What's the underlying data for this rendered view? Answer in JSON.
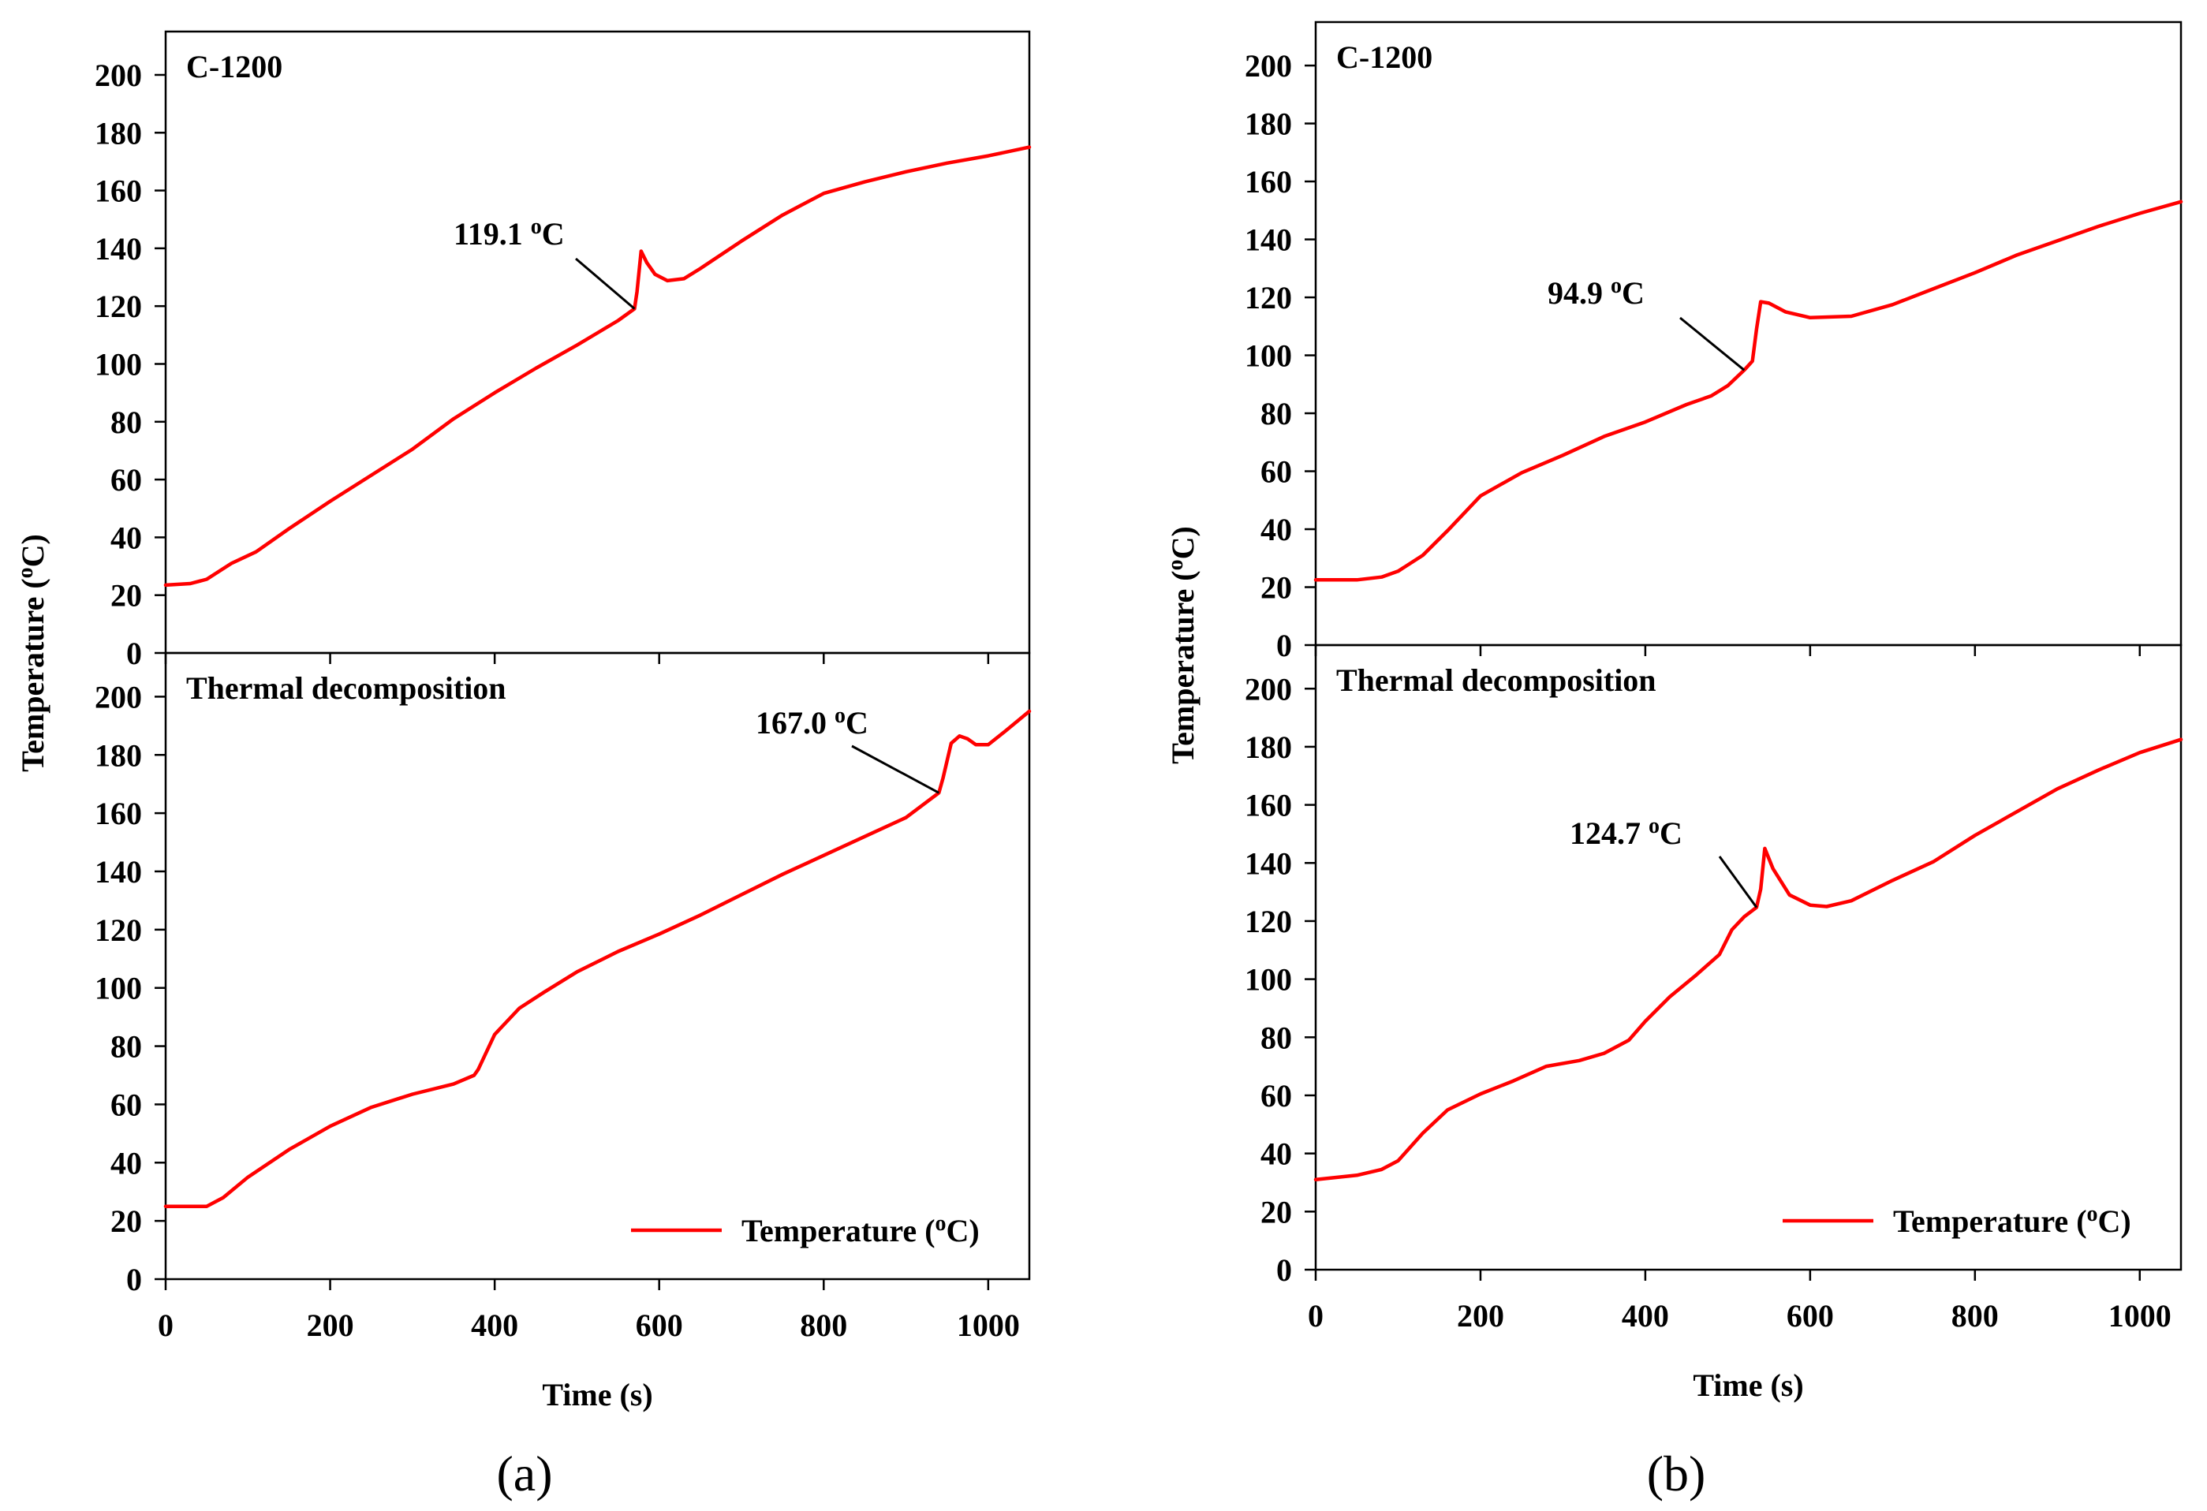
{
  "chart_data": [
    {
      "type": "line",
      "figure": "a",
      "subplot": "top",
      "title": "C-1200",
      "xlabel": "",
      "ylabel": "Temperature (oC)",
      "xlim": [
        0,
        1050
      ],
      "ylim": [
        0,
        215
      ],
      "xticks": [
        "0",
        "200",
        "400",
        "600",
        "800",
        "1000"
      ],
      "yticks": [
        "0",
        "20",
        "40",
        "60",
        "80",
        "100",
        "120",
        "140",
        "160",
        "180",
        "200"
      ],
      "series": [
        {
          "name": "Temperature (oC)",
          "color": "#ff0000",
          "x": [
            0,
            30,
            50,
            80,
            110,
            150,
            200,
            250,
            300,
            350,
            400,
            450,
            500,
            550,
            570,
            573,
            578,
            585,
            595,
            610,
            630,
            650,
            700,
            750,
            800,
            850,
            900,
            950,
            1000,
            1050
          ],
          "y": [
            23.5,
            24,
            25.5,
            31,
            35,
            43,
            52.5,
            61.5,
            70.5,
            81,
            90,
            98.5,
            106.5,
            115,
            119.1,
            125,
            139,
            135,
            131,
            128.8,
            129.5,
            133,
            142.5,
            151.5,
            159,
            163,
            166.5,
            169.5,
            172,
            175
          ]
        }
      ],
      "annotations": [
        {
          "text": "119.1 oC",
          "x": 570,
          "y": 119.1
        }
      ]
    },
    {
      "type": "line",
      "figure": "a",
      "subplot": "bottom",
      "title": "Thermal decomposition",
      "xlabel": "Time (s)",
      "ylabel": "",
      "xlim": [
        0,
        1050
      ],
      "ylim": [
        0,
        215
      ],
      "xticks": [
        "0",
        "200",
        "400",
        "600",
        "800",
        "1000"
      ],
      "yticks": [
        "0",
        "20",
        "40",
        "60",
        "80",
        "100",
        "120",
        "140",
        "160",
        "180",
        "200"
      ],
      "legend": "bottom-right",
      "series": [
        {
          "name": "Temperature (oC)",
          "color": "#ff0000",
          "x": [
            0,
            50,
            70,
            100,
            150,
            200,
            250,
            300,
            350,
            375,
            380,
            400,
            430,
            460,
            500,
            550,
            600,
            650,
            700,
            750,
            800,
            850,
            900,
            940,
            945,
            955,
            965,
            975,
            985,
            1000,
            1020,
            1050
          ],
          "y": [
            25,
            25,
            28,
            35,
            44.5,
            52.5,
            59,
            63.5,
            67,
            70,
            72,
            84,
            93,
            98.5,
            105.5,
            112.5,
            118.5,
            125,
            132,
            139,
            145.5,
            152,
            158.5,
            167,
            172,
            184,
            186.5,
            185.5,
            183.5,
            183.5,
            188,
            195
          ]
        }
      ],
      "annotations": [
        {
          "text": "167.0 oC",
          "x": 940,
          "y": 167.0
        }
      ]
    },
    {
      "type": "line",
      "figure": "b",
      "subplot": "top",
      "title": "C-1200",
      "xlabel": "",
      "ylabel": "Temperature (oC)",
      "xlim": [
        0,
        1050
      ],
      "ylim": [
        0,
        215
      ],
      "xticks": [
        "0",
        "200",
        "400",
        "600",
        "800",
        "1000"
      ],
      "yticks": [
        "0",
        "20",
        "40",
        "60",
        "80",
        "100",
        "120",
        "140",
        "160",
        "180",
        "200"
      ],
      "series": [
        {
          "name": "Temperature (oC)",
          "color": "#ff0000",
          "x": [
            0,
            50,
            80,
            100,
            130,
            160,
            200,
            250,
            300,
            350,
            400,
            450,
            480,
            500,
            520,
            530,
            535,
            540,
            550,
            570,
            600,
            650,
            700,
            750,
            800,
            850,
            900,
            950,
            1000,
            1050
          ],
          "y": [
            22.5,
            22.5,
            23.5,
            25.5,
            31,
            39.5,
            51.5,
            59.5,
            65.5,
            72,
            77,
            83,
            86,
            89.5,
            94.9,
            98,
            109,
            118.5,
            118,
            115,
            113,
            113.5,
            117.5,
            123,
            128.5,
            134.5,
            139.5,
            144.5,
            149,
            153
          ]
        }
      ],
      "annotations": [
        {
          "text": "94.9 oC",
          "x": 520,
          "y": 94.9
        }
      ]
    },
    {
      "type": "line",
      "figure": "b",
      "subplot": "bottom",
      "title": "Thermal decomposition",
      "xlabel": "Time (s)",
      "ylabel": "",
      "xlim": [
        0,
        1050
      ],
      "ylim": [
        0,
        215
      ],
      "xticks": [
        "0",
        "200",
        "400",
        "600",
        "800",
        "1000"
      ],
      "yticks": [
        "0",
        "20",
        "40",
        "60",
        "80",
        "100",
        "120",
        "140",
        "160",
        "180",
        "200"
      ],
      "legend": "bottom-right",
      "series": [
        {
          "name": "Temperature (oC)",
          "color": "#ff0000",
          "x": [
            0,
            50,
            80,
            100,
            130,
            160,
            200,
            240,
            280,
            320,
            350,
            380,
            400,
            430,
            460,
            490,
            505,
            520,
            535,
            540,
            545,
            555,
            575,
            600,
            620,
            650,
            700,
            750,
            800,
            850,
            900,
            950,
            1000,
            1050
          ],
          "y": [
            31,
            32.5,
            34.5,
            37.5,
            47,
            55,
            60.5,
            65,
            70,
            72,
            74.5,
            79,
            85.5,
            94,
            101,
            108.5,
            117,
            121.5,
            124.7,
            131,
            145,
            138,
            129,
            125.5,
            125,
            127,
            134,
            140.5,
            149.5,
            157.5,
            165.5,
            172,
            178,
            182.5
          ]
        }
      ],
      "annotations": [
        {
          "text": "124.7 oC",
          "x": 535,
          "y": 124.7
        }
      ]
    }
  ],
  "panel_labels": {
    "a": "(a)",
    "b": "(b)"
  }
}
